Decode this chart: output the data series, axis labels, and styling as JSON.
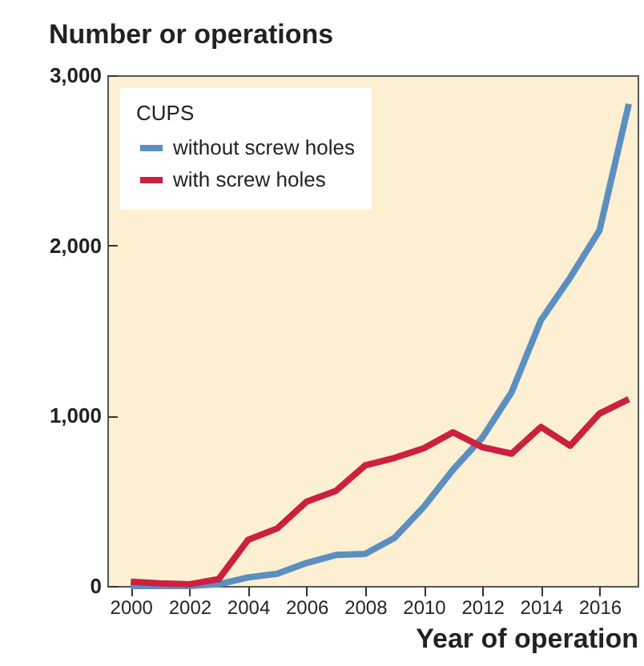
{
  "chart_data": {
    "type": "line",
    "title": "Number or operations",
    "xlabel": "Year of operation",
    "legend_title": "CUPS",
    "legend": "top left",
    "grid": false,
    "x": [
      2000,
      2001,
      2002,
      2003,
      2004,
      2005,
      2006,
      2007,
      2008,
      2009,
      2010,
      2011,
      2012,
      2013,
      2014,
      2015,
      2016,
      2017
    ],
    "xlim": [
      1999.2,
      2017.3
    ],
    "xticks": [
      2000,
      2002,
      2004,
      2006,
      2008,
      2010,
      2012,
      2014,
      2016
    ],
    "ylim": [
      0,
      3000
    ],
    "yticks": [
      {
        "value": 0,
        "label": "0"
      },
      {
        "value": 1000,
        "label": "1,000"
      },
      {
        "value": 2000,
        "label": "2,000"
      },
      {
        "value": 3000,
        "label": "3,000"
      }
    ],
    "series": [
      {
        "name": "without screw holes",
        "color": "#5b8fc0",
        "values": [
          0,
          0,
          0,
          10,
          50,
          72,
          135,
          182,
          188,
          282,
          464,
          683,
          871,
          1138,
          1561,
          1812,
          2088,
          2831
        ]
      },
      {
        "name": "with screw holes",
        "color": "#cc2040",
        "values": [
          25,
          15,
          10,
          40,
          270,
          338,
          495,
          558,
          708,
          752,
          809,
          903,
          815,
          777,
          934,
          824,
          1013,
          1097
        ]
      }
    ]
  }
}
